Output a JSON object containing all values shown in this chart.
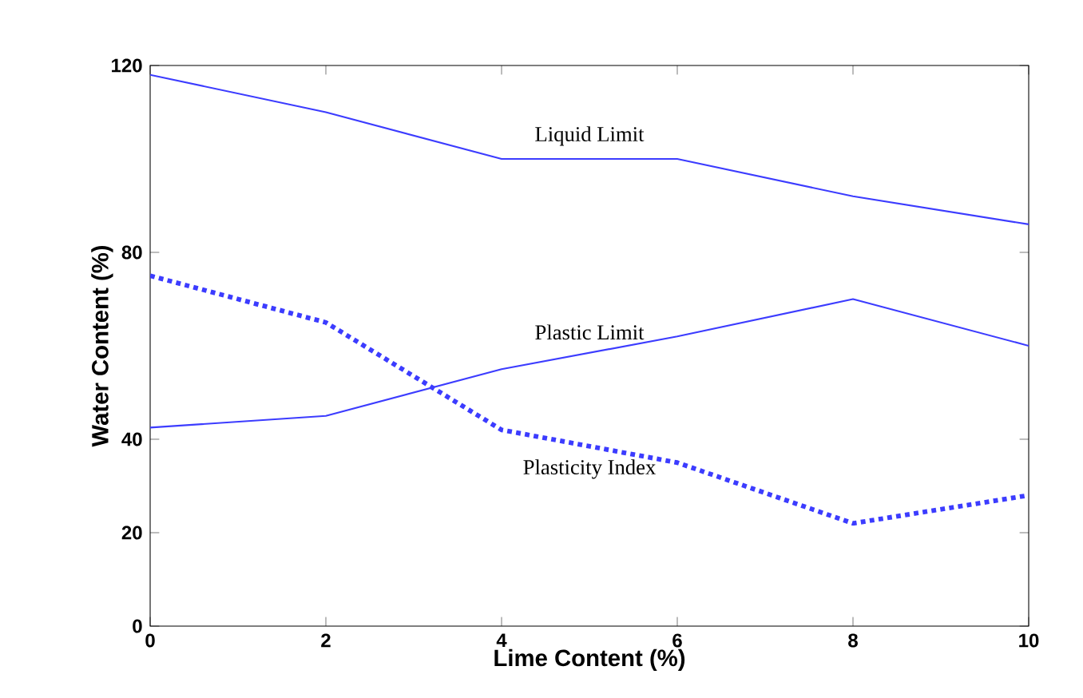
{
  "chart_data": {
    "type": "line",
    "xlabel": "Lime Content (%)",
    "ylabel": "Water Content (%)",
    "x": [
      0,
      2,
      4,
      6,
      8,
      10
    ],
    "series": [
      {
        "name": "Liquid Limit",
        "color": "#3c3cff",
        "line_style": "solid",
        "values": [
          118,
          110,
          100,
          100,
          92,
          86
        ]
      },
      {
        "name": "Plastic Limit",
        "color": "#3c3cff",
        "line_style": "solid",
        "values": [
          42.5,
          45,
          55,
          62,
          70,
          60
        ]
      },
      {
        "name": "Plasticity Index",
        "color": "#3c3cff",
        "line_style": "dotted",
        "values": [
          75,
          65,
          42,
          35,
          22,
          28
        ]
      }
    ],
    "xlim": [
      0,
      10
    ],
    "ylim": [
      0,
      120
    ],
    "xticks": [
      0,
      2,
      4,
      6,
      8,
      10
    ],
    "yticks": [
      0,
      20,
      40,
      80,
      120
    ],
    "grid": false,
    "legend": false,
    "marker": "none"
  }
}
